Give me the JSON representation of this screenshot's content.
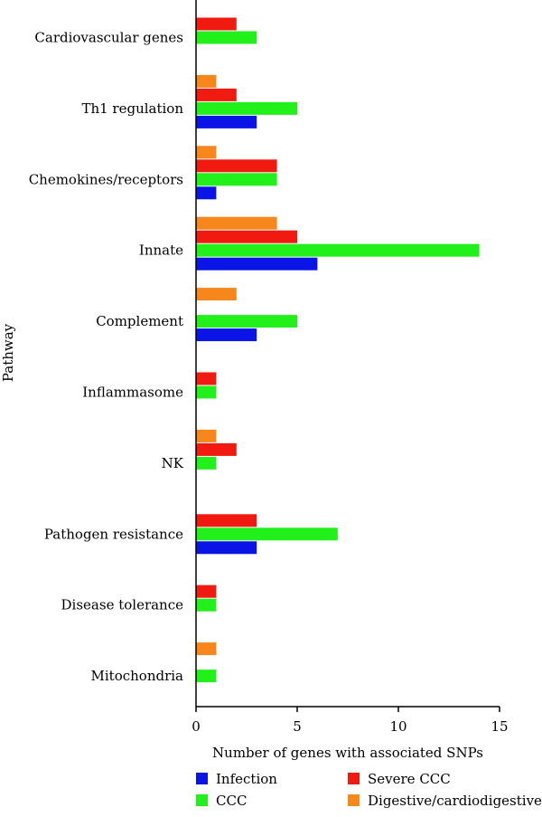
{
  "chart_data": {
    "type": "bar",
    "orientation": "horizontal",
    "categories": [
      "Cardiovascular genes",
      "Th1 regulation",
      "Chemokines/receptors",
      "Innate",
      "Complement",
      "Inflammasome",
      "NK",
      "Pathogen resistance",
      "Disease tolerance",
      "Mitochondria"
    ],
    "series": [
      {
        "name": "Infection",
        "color": "#0a14e6",
        "values": [
          0,
          3,
          1,
          6,
          3,
          0,
          0,
          3,
          0,
          0
        ]
      },
      {
        "name": "CCC",
        "color": "#22f01a",
        "values": [
          3,
          5,
          4,
          14,
          5,
          1,
          1,
          7,
          1,
          1
        ]
      },
      {
        "name": "Severe CCC",
        "color": "#f01a10",
        "values": [
          2,
          2,
          4,
          5,
          0,
          1,
          2,
          3,
          1,
          0
        ]
      },
      {
        "name": "Digestive/cardiodigestive",
        "color": "#f7861b",
        "values": [
          0,
          1,
          1,
          4,
          2,
          0,
          1,
          0,
          0,
          1
        ]
      }
    ],
    "xlabel": "Number of genes with associated SNPs",
    "ylabel": "Pathway",
    "xlim": [
      0,
      15
    ],
    "xticks": [
      0,
      5,
      10,
      15
    ],
    "grid": false,
    "legend_position": "bottom"
  }
}
